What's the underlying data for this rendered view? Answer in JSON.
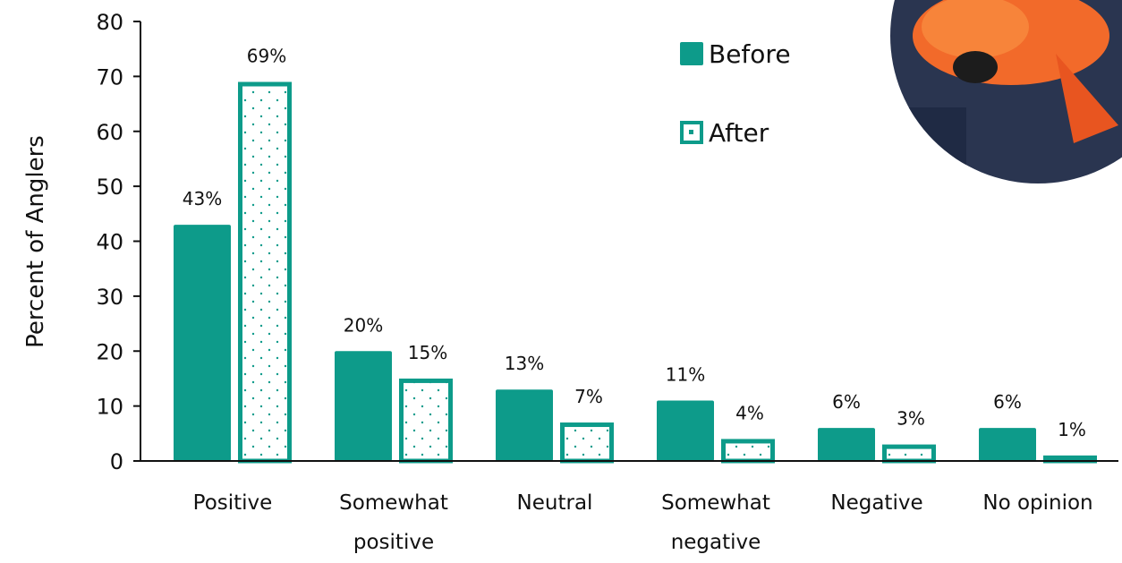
{
  "chart_data": {
    "type": "bar",
    "y_label": "Percent of Anglers",
    "categories": [
      "Positive",
      "Somewhat positive",
      "Neutral",
      "Somewhat negative",
      "Negative",
      "No opinion"
    ],
    "series": [
      {
        "name": "Before",
        "color": "#0d9b8a",
        "pattern": "solid",
        "values": [
          43,
          20,
          13,
          11,
          6,
          6
        ],
        "value_labels": [
          "43%",
          "20%",
          "13%",
          "11%",
          "6%",
          "6%"
        ]
      },
      {
        "name": "After",
        "color": "#0d9b8a",
        "pattern": "dotted",
        "values": [
          69,
          15,
          7,
          4,
          3,
          1
        ],
        "value_labels": [
          "69%",
          "15%",
          "7%",
          "4%",
          "3%",
          "1%"
        ]
      }
    ],
    "ylim": [
      0,
      80
    ],
    "yticks": [
      0,
      10,
      20,
      30,
      40,
      50,
      60,
      70,
      80
    ],
    "grid": false
  }
}
